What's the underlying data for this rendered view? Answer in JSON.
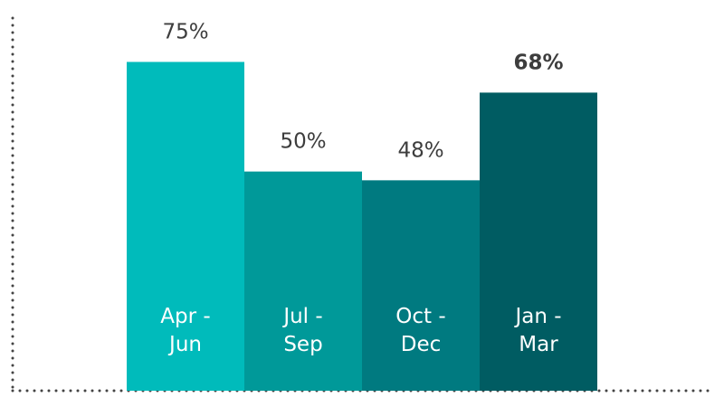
{
  "chart_data": {
    "type": "bar",
    "title": "",
    "xlabel": "",
    "ylabel": "",
    "ylim": [
      0,
      85
    ],
    "grid": false,
    "categories": [
      [
        "Apr -",
        "Jun"
      ],
      [
        "Jul -",
        "Sep"
      ],
      [
        "Oct -",
        "Dec"
      ],
      [
        "Jan -",
        "Mar"
      ]
    ],
    "values": [
      75,
      50,
      48,
      68
    ],
    "value_labels": [
      "75%",
      "50%",
      "48%",
      "68%"
    ],
    "highlight_index": 3,
    "colors": [
      "#00bbbb",
      "#009999",
      "#007a80",
      "#005c62"
    ],
    "axis_color": "#444444"
  }
}
